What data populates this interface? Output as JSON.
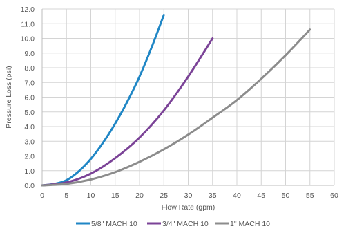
{
  "chart_data": {
    "type": "line",
    "title": "",
    "xlabel": "Flow Rate (gpm)",
    "ylabel": "Pressure Loss (psi)",
    "xlim": [
      0,
      60
    ],
    "ylim": [
      0,
      12
    ],
    "xticks": [
      "0",
      "5",
      "10",
      "15",
      "20",
      "25",
      "30",
      "35",
      "40",
      "45",
      "50",
      "55",
      "60"
    ],
    "yticks": [
      "0.0",
      "1.0",
      "2.0",
      "3.0",
      "4.0",
      "5.0",
      "6.0",
      "7.0",
      "8.0",
      "9.0",
      "10.0",
      "11.0",
      "12.0"
    ],
    "grid": true,
    "legend_position": "bottom",
    "series": [
      {
        "name": "5/8\" MACH 10",
        "color": "#1f86c5",
        "points": [
          [
            0,
            0
          ],
          [
            2.5,
            0.1
          ],
          [
            5,
            0.35
          ],
          [
            7.5,
            0.95
          ],
          [
            10,
            1.8
          ],
          [
            12.5,
            2.9
          ],
          [
            15,
            4.2
          ],
          [
            17.5,
            5.7
          ],
          [
            20,
            7.4
          ],
          [
            22.5,
            9.4
          ],
          [
            25,
            11.6
          ]
        ]
      },
      {
        "name": "3/4\" MACH 10",
        "color": "#7b4397",
        "points": [
          [
            0,
            0
          ],
          [
            5,
            0.2
          ],
          [
            10,
            0.8
          ],
          [
            15,
            1.85
          ],
          [
            20,
            3.25
          ],
          [
            25,
            5.1
          ],
          [
            30,
            7.4
          ],
          [
            35,
            10.0
          ]
        ]
      },
      {
        "name": "1\" MACH 10",
        "color": "#8c8c8c",
        "points": [
          [
            0,
            0
          ],
          [
            5,
            0.1
          ],
          [
            10,
            0.4
          ],
          [
            15,
            0.9
          ],
          [
            20,
            1.6
          ],
          [
            25,
            2.45
          ],
          [
            30,
            3.45
          ],
          [
            35,
            4.6
          ],
          [
            40,
            5.8
          ],
          [
            45,
            7.25
          ],
          [
            50,
            8.85
          ],
          [
            55,
            10.6
          ]
        ]
      }
    ]
  }
}
